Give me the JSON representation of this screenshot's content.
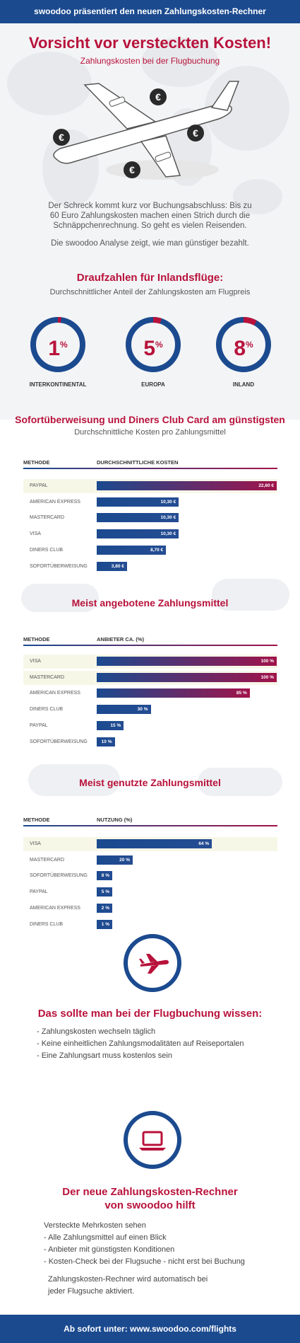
{
  "header": {
    "banner": "swoodoo präsentiert den neuen Zahlungskosten-Rechner"
  },
  "hero": {
    "title": "Vorsicht vor versteckten Kosten!",
    "subtitle": "Zahlungskosten bei der Flugbuchung",
    "intro_line1": "Der Schreck kommt kurz vor Buchungsabschluss: Bis zu",
    "intro_line2": "60 Euro Zahlungskosten machen einen Strich durch die",
    "intro_line3": "Schnäppchenrechnung. So geht es vielen Reisenden.",
    "intro2": "Die swoodoo Analyse zeigt, wie man günstiger bezahlt."
  },
  "colors": {
    "red": "#b8123b",
    "blue": "#1b4a8f",
    "gradient_start": "#1b4a8f",
    "gradient_end": "#a0134a"
  },
  "donuts": {
    "title": "Draufzahlen für Inlandsflüge:",
    "subtitle": "Durchschnittlicher Anteil der Zahlungskosten am Flugpreis",
    "items": [
      {
        "value": "1",
        "unit": "%",
        "label": "INTERKONTINENTAL",
        "fraction": 0.01
      },
      {
        "value": "5",
        "unit": "%",
        "label": "EUROPA",
        "fraction": 0.05
      },
      {
        "value": "8",
        "unit": "%",
        "label": "INLAND",
        "fraction": 0.08
      }
    ]
  },
  "chart_data": [
    {
      "type": "bar",
      "title": "Sofortüberweisung und Diners Club Card am günstigsten",
      "subtitle": "Durchschnittliche Kosten pro Zahlungsmittel",
      "col1": "METHODE",
      "col2": "DURCHSCHNITTLICHE KOSTEN",
      "categories": [
        "PAYPAL",
        "AMERICAN EXPRESS",
        "MASTERCARD",
        "VISA",
        "DINERS CLUB",
        "SOFORTÜBERWEISUNG"
      ],
      "values": [
        22.6,
        10.3,
        10.3,
        10.3,
        8.7,
        3.8
      ],
      "value_labels": [
        "22,60 €",
        "10,30 €",
        "10,30 €",
        "10,30 €",
        "8,70 €",
        "3,80 €"
      ],
      "xlim": [
        0,
        22.6
      ],
      "highlighted": [
        0
      ]
    },
    {
      "type": "bar",
      "title": "Meist angebotene Zahlungsmittel",
      "col1": "METHODE",
      "col2": "ANBIETER CA. (%)",
      "categories": [
        "VISA",
        "MASTERCARD",
        "AMERICAN EXPRESS",
        "DINERS CLUB",
        "PAYPAL",
        "SOFORTÜBERWEISUNG"
      ],
      "values": [
        100,
        100,
        85,
        30,
        15,
        10
      ],
      "value_labels": [
        "100 %",
        "100 %",
        "85 %",
        "30 %",
        "15 %",
        "10 %"
      ],
      "xlim": [
        0,
        100
      ],
      "highlighted": [
        0,
        1
      ]
    },
    {
      "type": "bar",
      "title": "Meist genutzte Zahlungsmittel",
      "col1": "METHODE",
      "col2": "NUTZUNG (%)",
      "categories": [
        "VISA",
        "MASTERCARD",
        "SOFORTÜBERWEISUNG",
        "PAYPAL",
        "AMERICAN EXPRESS",
        "DINERS CLUB"
      ],
      "values": [
        64,
        20,
        8,
        5,
        2,
        1
      ],
      "value_labels": [
        "64 %",
        "20 %",
        "8 %",
        "5 %",
        "2 %",
        "1 %"
      ],
      "xlim": [
        0,
        100
      ],
      "highlighted": [
        0
      ]
    }
  ],
  "tips": {
    "icon": "airplane-icon",
    "title": "Das sollte man bei der Flugbuchung wissen:",
    "items": [
      "- Zahlungskosten wechseln täglich",
      "- Keine einheitlichen Zahlungsmodalitäten auf Reiseportalen",
      "- Eine Zahlungsart muss kostenlos sein"
    ]
  },
  "calculator": {
    "icon": "laptop-icon",
    "title_line1": "Der neue Zahlungskosten-Rechner",
    "title_line2": "von swoodoo hilft",
    "items": [
      "Versteckte Mehrkosten sehen",
      "- Alle Zahlungsmittel auf einen Blick",
      "- Anbieter mit günstigsten Konditionen",
      "- Kosten-Check bei der Flugsuche - nicht erst bei Buchung"
    ],
    "note_line1": "Zahlungskosten-Rechner wird automatisch bei",
    "note_line2": "jeder Flugsuche aktiviert."
  },
  "footer": {
    "cta": "Ab sofort unter: www.swoodoo.com/flights"
  }
}
